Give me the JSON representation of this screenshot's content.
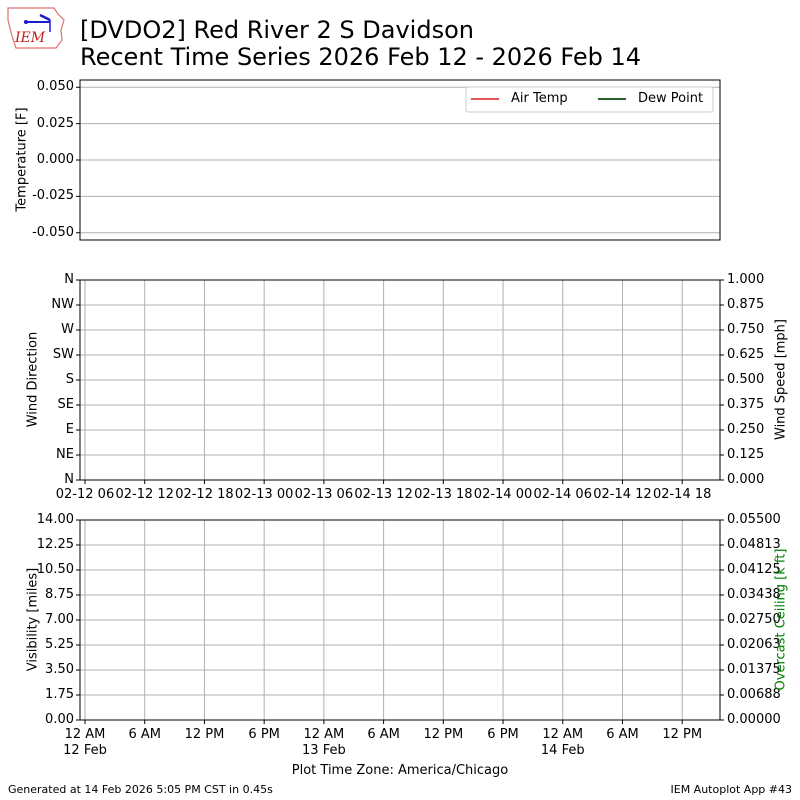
{
  "header": {
    "title_line1": "[DVDO2] Red River 2 S Davidson",
    "title_line2": "Recent Time Series 2026 Feb 12 - 2026 Feb 14",
    "logo_text": "IEM"
  },
  "footer": {
    "generated": "Generated at 14 Feb 2026 5:05 PM CST in 0.45s",
    "app": "IEM Autoplot App #43"
  },
  "chart_data": [
    {
      "type": "line",
      "ylabel": "Temperature [F]",
      "ylim": [
        -0.055,
        0.055
      ],
      "yticks": [
        "0.050",
        "0.025",
        "0.000",
        "-0.025",
        "-0.050"
      ],
      "grid": "horizontal",
      "legend": {
        "placement": "top-right",
        "entries": [
          {
            "name": "Air Temp",
            "color": "#e15759"
          },
          {
            "name": "Dew Point",
            "color": "#2b5e2b"
          }
        ]
      },
      "series": [
        {
          "name": "Air Temp",
          "values": []
        },
        {
          "name": "Dew Point",
          "values": []
        }
      ]
    },
    {
      "type": "scatter",
      "ylabel": "Wind Direction",
      "y2label": "Wind Speed [mph]",
      "yticks": [
        "N",
        "NW",
        "W",
        "SW",
        "S",
        "SE",
        "E",
        "NE",
        "N"
      ],
      "y2ticks": [
        "1.000",
        "0.875",
        "0.750",
        "0.625",
        "0.500",
        "0.375",
        "0.250",
        "0.125",
        "0.000"
      ],
      "y2lim": [
        0,
        1
      ],
      "xticks": [
        "02-12 06",
        "02-12 12",
        "02-12 18",
        "02-13 00",
        "02-13 06",
        "02-13 12",
        "02-13 18",
        "02-14 00",
        "02-14 06",
        "02-14 12",
        "02-14 18"
      ],
      "grid": "both",
      "series": []
    },
    {
      "type": "line",
      "ylabel": "Visibility [miles]",
      "y2label": "Overcast Ceiling [k ft]",
      "y2color": "#008000",
      "ylim": [
        0,
        14
      ],
      "y2lim": [
        0,
        0.055
      ],
      "yticks": [
        "14.00",
        "12.25",
        "10.50",
        "8.75",
        "7.00",
        "5.25",
        "3.50",
        "1.75",
        "0.00"
      ],
      "y2ticks": [
        "0.05500",
        "0.04813",
        "0.04125",
        "0.03438",
        "0.02750",
        "0.02063",
        "0.01375",
        "0.00688",
        "0.00000"
      ],
      "xticks": [
        "12 AM",
        "6 AM",
        "12 PM",
        "6 PM",
        "12 AM",
        "6 AM",
        "12 PM",
        "6 PM",
        "12 AM",
        "6 AM",
        "12 PM"
      ],
      "xsub": [
        "12 Feb",
        "",
        "",
        "",
        "13 Feb",
        "",
        "",
        "",
        "14 Feb",
        "",
        ""
      ],
      "xlabel": "Plot Time Zone: America/Chicago",
      "grid": "both",
      "series": []
    }
  ]
}
